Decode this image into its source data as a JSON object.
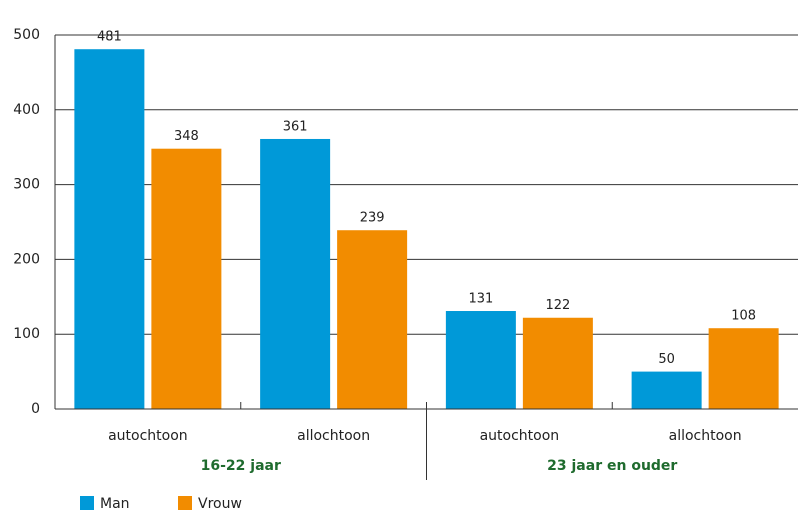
{
  "chart_data": {
    "type": "bar",
    "categories": [
      "autochtoon",
      "allochtoon",
      "autochtoon",
      "allochtoon"
    ],
    "groups": [
      "16-22 jaar",
      "23 jaar en ouder"
    ],
    "series": [
      {
        "name": "Man",
        "color": "#0099d8",
        "values": [
          481,
          361,
          131,
          50
        ]
      },
      {
        "name": "Vrouw",
        "color": "#f28c00",
        "values": [
          348,
          239,
          122,
          108
        ]
      }
    ],
    "ylim": [
      0,
      500
    ],
    "yticks": [
      0,
      100,
      200,
      300,
      400,
      500
    ],
    "grid": true,
    "legend": "bottom"
  }
}
